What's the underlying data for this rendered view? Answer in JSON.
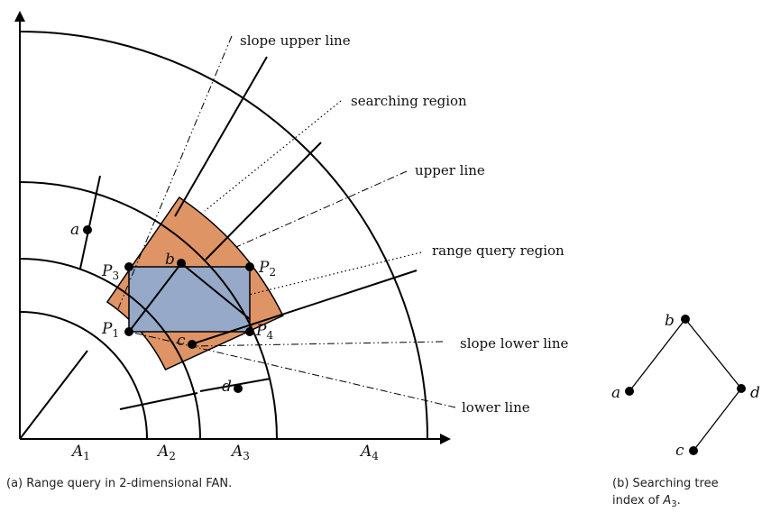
{
  "diagram_a": {
    "caption": "(a) Range query in 2-dimensional FAN.",
    "annotations": {
      "slope_upper_line": "slope upper line",
      "searching_region": "searching region",
      "upper_line": "upper line",
      "range_query_region": "range query region",
      "slope_lower_line": "slope lower line",
      "lower_line": "lower line"
    },
    "points": {
      "a": "a",
      "b": "b",
      "c": "c",
      "d": "d"
    },
    "corners": [
      {
        "base": "P",
        "sub": "1"
      },
      {
        "base": "P",
        "sub": "2"
      },
      {
        "base": "P",
        "sub": "3"
      },
      {
        "base": "P",
        "sub": "4"
      }
    ],
    "axis_regions": [
      {
        "base": "A",
        "sub": "1"
      },
      {
        "base": "A",
        "sub": "2"
      },
      {
        "base": "A",
        "sub": "3"
      },
      {
        "base": "A",
        "sub": "4"
      }
    ],
    "colors": {
      "searching_region": "#df9465",
      "range_query_region": "#96a9c8"
    }
  },
  "diagram_b": {
    "caption_line1": "(b) Searching tree",
    "caption_line2_prefix": "index of ",
    "caption_line2_base": "A",
    "caption_line2_sub": "3",
    "caption_line2_suffix": ".",
    "nodes": {
      "b": "b",
      "a": "a",
      "d": "d",
      "c": "c"
    }
  }
}
